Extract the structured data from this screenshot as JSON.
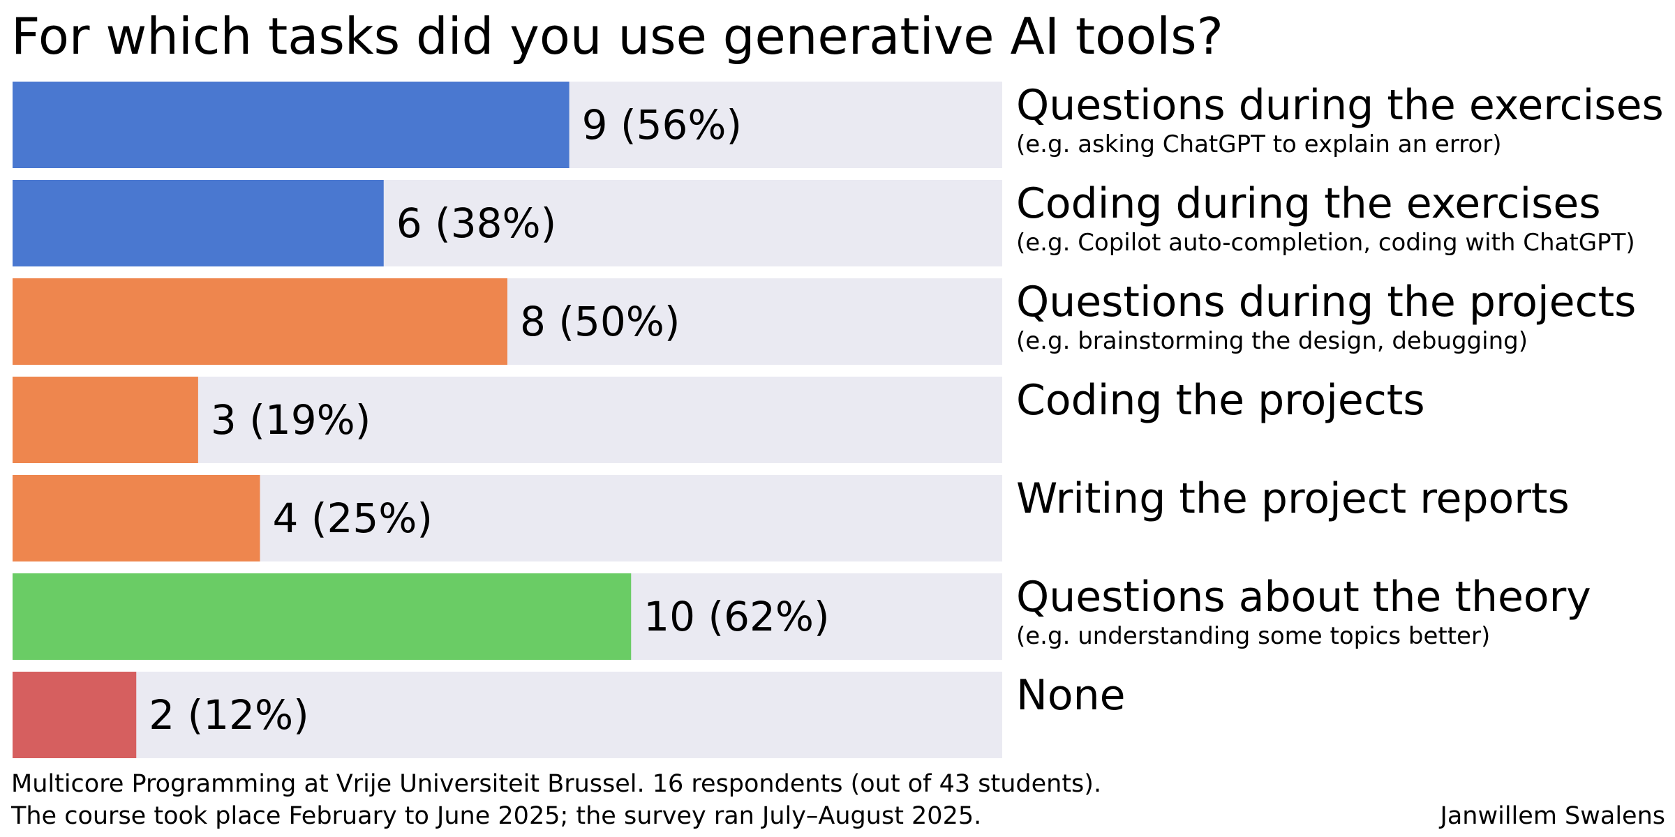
{
  "chart_data": {
    "type": "bar",
    "orientation": "horizontal",
    "title": "For which tasks did you use generative AI tools?",
    "xlim": [
      0,
      16
    ],
    "grid": false,
    "legend": "none",
    "categories": [
      "Questions during the exercises",
      "Coding during the exercises",
      "Questions during the projects",
      "Coding the projects",
      "Writing the project reports",
      "Questions about the theory",
      "None"
    ],
    "subtitles": [
      "(e.g. asking ChatGPT to explain an error)",
      "(e.g. Copilot auto-completion, coding with ChatGPT)",
      "(e.g. brainstorming the design, debugging)",
      "",
      "",
      "(e.g. understanding some topics better)",
      ""
    ],
    "values": [
      9,
      6,
      8,
      3,
      4,
      10,
      2
    ],
    "value_labels": [
      "9 (56%)",
      "6 (38%)",
      "8 (50%)",
      "3 (19%)",
      "4 (25%)",
      "10 (62%)",
      "2 (12%)"
    ],
    "bar_colors": [
      "#4a78d0",
      "#4a78d0",
      "#ee864e",
      "#ee864e",
      "#ee864e",
      "#6acc65",
      "#d65f5f"
    ],
    "track_color": "#eaeaf2"
  },
  "footnote": {
    "line1": "Multicore Programming at Vrije Universiteit Brussel. 16 respondents (out of 43 students).",
    "line2": "The course took place February to June 2025; the survey ran July–August 2025."
  },
  "author": "Janwillem Swalens"
}
